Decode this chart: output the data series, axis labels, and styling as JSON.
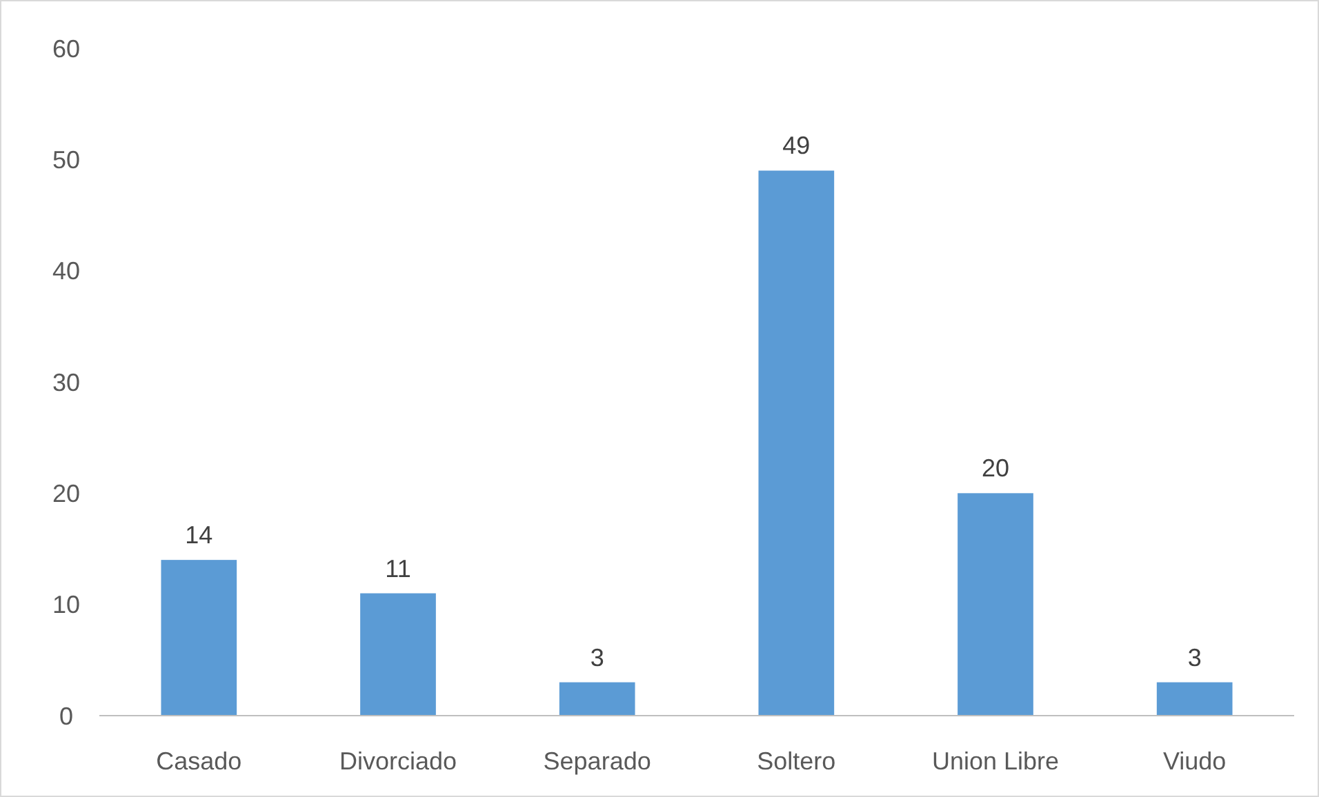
{
  "chart_data": {
    "type": "bar",
    "categories": [
      "Casado",
      "Divorciado",
      "Separado",
      "Soltero",
      "Union Libre",
      "Viudo"
    ],
    "values": [
      14,
      11,
      3,
      49,
      20,
      3
    ],
    "color": "#5b9bd5",
    "ylim": [
      0,
      60
    ],
    "yticks": [
      0,
      10,
      20,
      30,
      40,
      50,
      60
    ],
    "grid": false,
    "data_labels": true
  }
}
